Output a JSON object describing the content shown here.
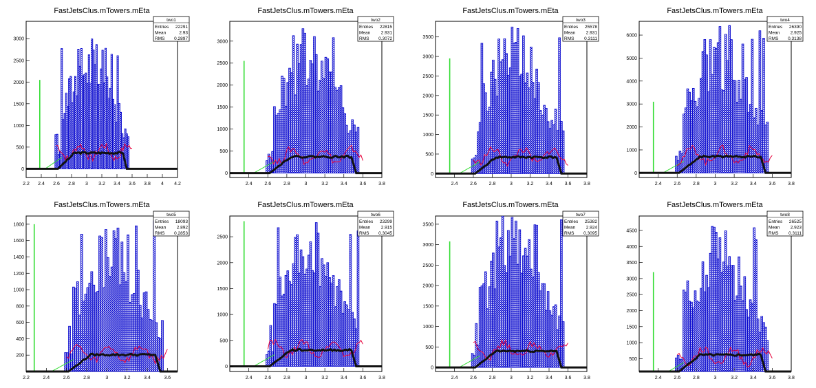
{
  "colors": {
    "blue": "#0000cc",
    "red": "#e8003a",
    "green": "#33dd33",
    "black": "#111111"
  },
  "chart_data": [
    {
      "type": "bar",
      "name": "two1",
      "title": "FastJetsClus.mTowers.mEta",
      "xlim": [
        2.2,
        4.2
      ],
      "ylim": [
        -200,
        3400
      ],
      "xticks": [
        "2.2",
        "2.4",
        "2.6",
        "2.8",
        "3",
        "3.2",
        "3.4",
        "3.6",
        "3.8",
        "4",
        "4.2"
      ],
      "yticks": [
        "0",
        "500",
        "1000",
        "1500",
        "2000",
        "2500",
        "3000"
      ],
      "stats": {
        "title": "two1",
        "rows": [
          {
            "label": "Entries",
            "value": "22291"
          },
          {
            "label": "Mean",
            "value": "2.93"
          },
          {
            "label": "RMS",
            "value": "0.2897"
          }
        ]
      },
      "green_spike": {
        "x": 2.38,
        "y": 2050
      },
      "ymax_main": 3050
    },
    {
      "type": "bar",
      "name": "two2",
      "title": "FastJetsClus.mTowers.mEta",
      "xlim": [
        2.2,
        3.8
      ],
      "ylim": [
        -100,
        3450
      ],
      "xticks": [
        "2.4",
        "2.6",
        "2.8",
        "3",
        "3.2",
        "3.4",
        "3.6",
        "3.8"
      ],
      "yticks": [
        "0",
        "500",
        "1000",
        "1500",
        "2000",
        "2500",
        "3000"
      ],
      "stats": {
        "title": "two2",
        "rows": [
          {
            "label": "Entries",
            "value": "22815"
          },
          {
            "label": "Mean",
            "value": "2.931"
          },
          {
            "label": "RMS",
            "value": "0.3072"
          }
        ]
      },
      "green_spike": {
        "x": 2.35,
        "y": 2550
      },
      "ymax_main": 3450
    },
    {
      "type": "bar",
      "name": "two3",
      "title": "FastJetsClus.mTowers.mEta",
      "xlim": [
        2.2,
        3.8
      ],
      "ylim": [
        -100,
        3900
      ],
      "xticks": [
        "2.4",
        "2.6",
        "2.8",
        "3",
        "3.2",
        "3.4",
        "3.6",
        "3.8"
      ],
      "yticks": [
        "0",
        "500",
        "1000",
        "1500",
        "2000",
        "2500",
        "3000",
        "3500"
      ],
      "stats": {
        "title": "two3",
        "rows": [
          {
            "label": "Entries",
            "value": "25578"
          },
          {
            "label": "Mean",
            "value": "2.931"
          },
          {
            "label": "RMS",
            "value": "0.3111"
          }
        ]
      },
      "green_spike": {
        "x": 2.35,
        "y": 2950
      },
      "ymax_main": 3900
    },
    {
      "type": "bar",
      "name": "two4",
      "title": "FastJetsClus.mTowers.mEta",
      "xlim": [
        2.2,
        3.8
      ],
      "ylim": [
        -200,
        6600
      ],
      "xticks": [
        "2.4",
        "2.6",
        "2.8",
        "3",
        "3.2",
        "3.4",
        "3.6",
        "3.8"
      ],
      "yticks": [
        "0",
        "1000",
        "2000",
        "3000",
        "4000",
        "5000",
        "6000"
      ],
      "stats": {
        "title": "two4",
        "rows": [
          {
            "label": "Entries",
            "value": "26390"
          },
          {
            "label": "Mean",
            "value": "2.925"
          },
          {
            "label": "RMS",
            "value": "0.3138"
          }
        ]
      },
      "green_spike": {
        "x": 2.35,
        "y": 3100
      },
      "ymax_main": 6600
    },
    {
      "type": "bar",
      "name": "two5",
      "title": "FastJetsClus.mTowers.mEta",
      "xlim": [
        2.2,
        3.7
      ],
      "ylim": [
        0,
        1900
      ],
      "xticks": [
        "2.2",
        "2.4",
        "2.6",
        "2.8",
        "3",
        "3.2",
        "3.4",
        "3.6"
      ],
      "yticks": [
        "200",
        "400",
        "600",
        "800",
        "1000",
        "1200",
        "1400",
        "1600",
        "1800"
      ],
      "stats": {
        "title": "two5",
        "rows": [
          {
            "label": "Entries",
            "value": "18093"
          },
          {
            "label": "Mean",
            "value": "2.892"
          },
          {
            "label": "RMS",
            "value": "0.2853"
          }
        ]
      },
      "green_spike": {
        "x": 2.28,
        "y": 1800
      },
      "ymax_main": 1850
    },
    {
      "type": "bar",
      "name": "two6",
      "title": "FastJetsClus.mTowers.mEta",
      "xlim": [
        2.2,
        3.8
      ],
      "ylim": [
        -100,
        2900
      ],
      "xticks": [
        "2.4",
        "2.6",
        "2.8",
        "3",
        "3.2",
        "3.4",
        "3.6",
        "3.8"
      ],
      "yticks": [
        "0",
        "500",
        "1000",
        "1500",
        "2000",
        "2500"
      ],
      "stats": {
        "title": "two6",
        "rows": [
          {
            "label": "Entries",
            "value": "23299"
          },
          {
            "label": "Mean",
            "value": "2.915"
          },
          {
            "label": "RMS",
            "value": "0.3045"
          }
        ]
      },
      "green_spike": {
        "x": 2.35,
        "y": 2800
      },
      "ymax_main": 2900
    },
    {
      "type": "bar",
      "name": "two7",
      "title": "FastJetsClus.mTowers.mEta",
      "xlim": [
        2.2,
        3.8
      ],
      "ylim": [
        -100,
        3700
      ],
      "xticks": [
        "2.4",
        "2.6",
        "2.8",
        "3",
        "3.2",
        "3.4",
        "3.6",
        "3.8"
      ],
      "yticks": [
        "0",
        "500",
        "1000",
        "1500",
        "2000",
        "2500",
        "3000",
        "3500"
      ],
      "stats": {
        "title": "two7",
        "rows": [
          {
            "label": "Entries",
            "value": "25382"
          },
          {
            "label": "Mean",
            "value": "2.924"
          },
          {
            "label": "RMS",
            "value": "0.3095"
          }
        ]
      },
      "green_spike": {
        "x": 2.35,
        "y": 3080
      },
      "ymax_main": 3700
    },
    {
      "type": "bar",
      "name": "two8",
      "title": "FastJetsClus.mTowers.mEta",
      "xlim": [
        2.2,
        3.8
      ],
      "ylim": [
        100,
        4950
      ],
      "xticks": [
        "2.4",
        "2.6",
        "2.8",
        "3",
        "3.2",
        "3.4",
        "3.6",
        "3.8"
      ],
      "yticks": [
        "500",
        "1000",
        "1500",
        "2000",
        "2500",
        "3000",
        "3500",
        "4000",
        "4500"
      ],
      "stats": {
        "title": "two8",
        "rows": [
          {
            "label": "Entries",
            "value": "26525"
          },
          {
            "label": "Mean",
            "value": "2.923"
          },
          {
            "label": "RMS",
            "value": "0.3111"
          }
        ]
      },
      "green_spike": {
        "x": 2.35,
        "y": 3200
      },
      "ymax_main": 4900
    }
  ]
}
